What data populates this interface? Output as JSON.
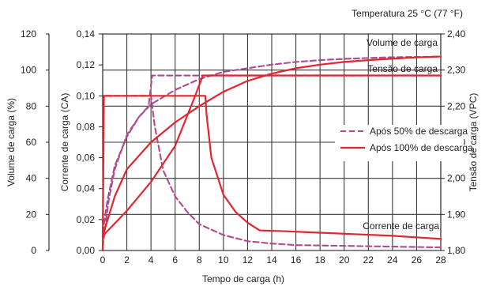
{
  "chart_data": {
    "type": "line",
    "title": "Temperatura 25 °C (77 °F)",
    "xlabel": "Tempo de carga (h)",
    "x_ticks": [
      0,
      2,
      4,
      6,
      8,
      10,
      12,
      14,
      16,
      18,
      20,
      22,
      24,
      26,
      28
    ],
    "xlim": [
      0,
      28
    ],
    "y_axes": [
      {
        "label": "Volume de carga (%)",
        "ticks": [
          "0",
          "20",
          "40",
          "60",
          "80",
          "100",
          "120"
        ],
        "ylim": [
          0,
          120
        ]
      },
      {
        "label": "Corrente de carga (CA)",
        "ticks": [
          "0,00",
          "0,02",
          "0,04",
          "0,06",
          "0,08",
          "0,10",
          "0,12",
          "0,14"
        ],
        "ylim": [
          0,
          0.14
        ]
      },
      {
        "label": "Tensão de carga (VPC)",
        "ticks": [
          "1,80",
          "1,90",
          "2,00",
          "2,10",
          "2,20",
          "2,30",
          "2,40"
        ],
        "ylim": [
          1.8,
          2.4
        ]
      }
    ],
    "annotations": [
      "Volume de carga",
      "Tensão de carga",
      "Corrente de carga"
    ],
    "legend": {
      "position": "right",
      "entries": [
        "Após 50% de descarga",
        "Após 100% de descarga"
      ]
    },
    "colors": {
      "after_50": "#b04a8e",
      "after_100": "#e1262f",
      "grid": "#3a3a3a"
    },
    "series": [
      {
        "name": "Após 50% de descarga",
        "group": "Volume de carga",
        "x": [
          0,
          0.5,
          1,
          2,
          3,
          4,
          6,
          8,
          10,
          12,
          14,
          16,
          18,
          20,
          22,
          24,
          26,
          28
        ],
        "y_percent": [
          2,
          28,
          45,
          64,
          74,
          81,
          89,
          95,
          99,
          101,
          103,
          104.5,
          105.5,
          106.2,
          106.7,
          107.1,
          107.3,
          107.5
        ]
      },
      {
        "name": "Após 50% de descarga",
        "group": "Tensão de carga",
        "x": [
          0,
          0.4,
          1,
          2,
          3,
          3.8,
          4.1,
          28
        ],
        "y_percent": [
          10,
          28,
          47,
          63,
          74,
          80,
          97,
          97
        ]
      },
      {
        "name": "Após 50% de descarga",
        "group": "Corrente de carga",
        "x": [
          0,
          0.1,
          4,
          4.3,
          5,
          6,
          7,
          8,
          10,
          12,
          14,
          16,
          20,
          24,
          28
        ],
        "y_ca": [
          0,
          0.1,
          0.1,
          0.081,
          0.052,
          0.035,
          0.025,
          0.017,
          0.01,
          0.006,
          0.0045,
          0.0035,
          0.003,
          0.0025,
          0.002
        ]
      },
      {
        "name": "Após 100% de descarga",
        "group": "Volume de carga",
        "x": [
          0,
          1,
          2,
          4,
          6,
          8,
          10,
          12,
          14,
          16,
          18,
          20,
          22,
          24,
          26,
          28
        ],
        "y_percent": [
          8,
          30,
          45,
          60,
          71,
          80,
          88,
          94,
          98,
          101,
          103,
          104.5,
          105.5,
          106.3,
          107,
          107.5
        ]
      },
      {
        "name": "Após 100% de descarga",
        "group": "Tensão de carga",
        "x": [
          0,
          2,
          4,
          6,
          7.5,
          8.3,
          28
        ],
        "y_percent": [
          8,
          22,
          38,
          58,
          83,
          97,
          97
        ]
      },
      {
        "name": "Após 100% de descarga",
        "group": "Corrente de carga",
        "x": [
          0,
          0.1,
          8.5,
          8.6,
          9,
          10,
          11,
          12,
          13,
          15,
          18,
          21,
          24,
          28
        ],
        "y_ca": [
          0,
          0.1,
          0.1,
          0.088,
          0.06,
          0.036,
          0.025,
          0.018,
          0.013,
          0.0125,
          0.0115,
          0.0105,
          0.0095,
          0.0075
        ]
      }
    ]
  }
}
